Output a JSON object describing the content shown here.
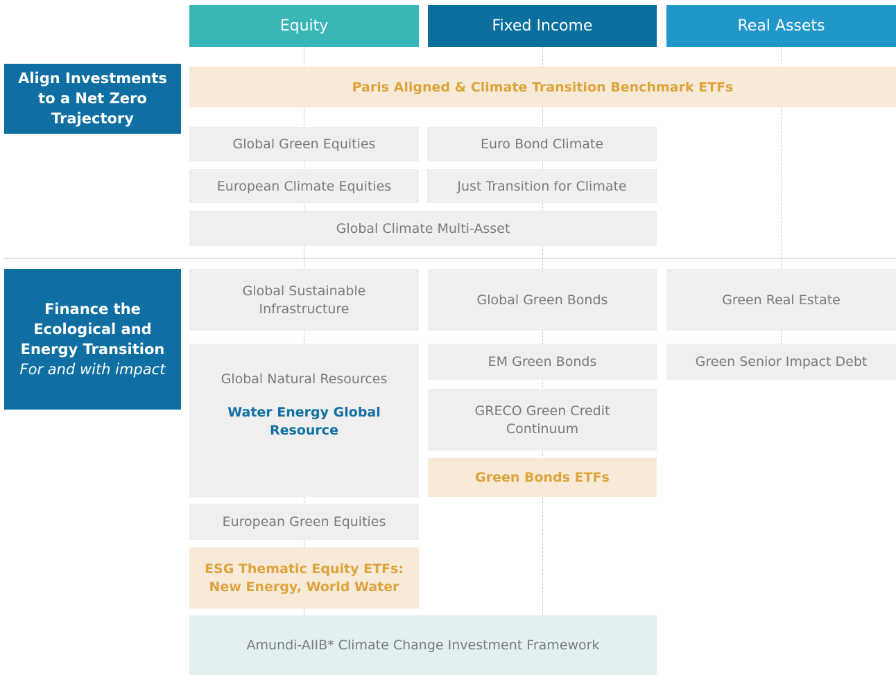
{
  "columns": [
    "Equity",
    "Fixed Income",
    "Real Assets"
  ],
  "sections": [
    {
      "label": "Align Investments to a Net Zero Trajectory"
    },
    {
      "label": "Finance the Ecological and Energy Transition",
      "sublabel": "For and with impact"
    }
  ],
  "cells": [
    {
      "text": "Paris Aligned & Climate Transition Benchmark ETFs"
    },
    {
      "text": "Global Green Equities"
    },
    {
      "text": "Euro Bond Climate"
    },
    {
      "text": "European Climate Equities"
    },
    {
      "text": "Just Transition for Climate"
    },
    {
      "text": "Global Climate Multi-Asset"
    },
    {
      "text": "Global Sustainable Infrastructure"
    },
    {
      "text": "Global Green Bonds"
    },
    {
      "text": "Green Real Estate"
    },
    {
      "text": "Global Natural Resources",
      "highlight": "Water Energy Global Resource"
    },
    {
      "text": "EM Green Bonds"
    },
    {
      "text": "Green Senior Impact Debt"
    },
    {
      "text": "GRECO Green Credit Continuum"
    },
    {
      "text": "Green Bonds ETFs"
    },
    {
      "text": "European Green Equities"
    },
    {
      "text": "ESG Thematic Equity ETFs: New Energy, World Water"
    },
    {
      "text": "Amundi-AIIB* Climate Change Investment Framework"
    }
  ]
}
